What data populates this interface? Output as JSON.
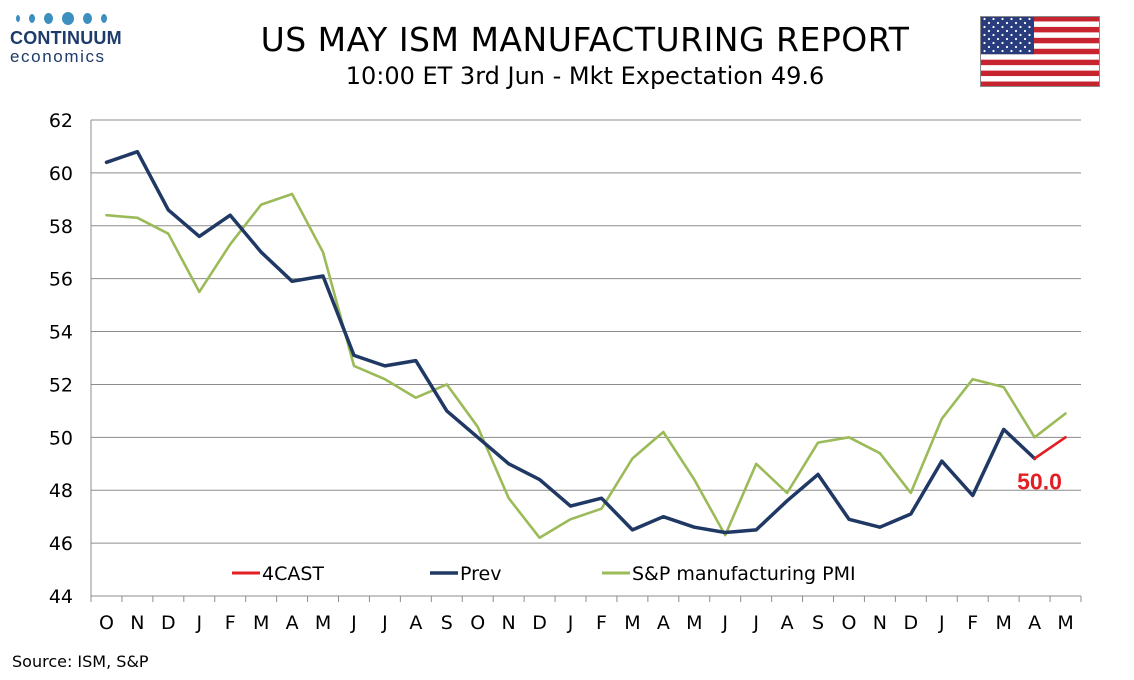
{
  "header": {
    "logo_name": "CONTINUUM",
    "logo_sub": "economics",
    "title": "US MAY ISM MANUFACTURING REPORT",
    "subtitle": "10:00 ET 3rd Jun - Mkt Expectation 49.6",
    "flag_icon": "us-flag-icon",
    "logo_color": "#1d3b6b",
    "logo_dot_color": "#3d8fbf"
  },
  "source": "Source: ISM, S&P",
  "chart_data": {
    "type": "line",
    "title": "US MAY ISM MANUFACTURING REPORT",
    "subtitle": "10:00 ET 3rd Jun - Mkt Expectation 49.6",
    "categories": [
      "O",
      "N",
      "D",
      "J",
      "F",
      "M",
      "A",
      "M",
      "J",
      "J",
      "A",
      "S",
      "O",
      "N",
      "D",
      "J",
      "F",
      "M",
      "A",
      "M",
      "J",
      "J",
      "A",
      "S",
      "O",
      "N",
      "D",
      "J",
      "F",
      "M",
      "A",
      "M"
    ],
    "ylim": [
      44,
      62
    ],
    "yticks": [
      44,
      46,
      48,
      50,
      52,
      54,
      56,
      58,
      60,
      62
    ],
    "grid": true,
    "legend_position": "bottom-inside",
    "series": [
      {
        "name": "4CAST",
        "color": "#e31e24",
        "values": [
          null,
          null,
          null,
          null,
          null,
          null,
          null,
          null,
          null,
          null,
          null,
          null,
          null,
          null,
          null,
          null,
          null,
          null,
          null,
          null,
          null,
          null,
          null,
          null,
          null,
          null,
          null,
          null,
          null,
          null,
          49.2,
          50.0
        ]
      },
      {
        "name": "Prev",
        "color": "#1f3864",
        "values": [
          60.4,
          60.8,
          58.6,
          57.6,
          58.4,
          57.0,
          55.9,
          56.1,
          53.1,
          52.7,
          52.9,
          51.0,
          50.0,
          49.0,
          48.4,
          47.4,
          47.7,
          46.5,
          47.0,
          46.6,
          46.4,
          46.5,
          47.6,
          48.6,
          46.9,
          46.6,
          47.1,
          49.1,
          47.8,
          50.3,
          49.2,
          null
        ]
      },
      {
        "name": "S&P manufacturing PMI",
        "color": "#9bbb59",
        "values": [
          58.4,
          58.3,
          57.7,
          55.5,
          57.3,
          58.8,
          59.2,
          57.0,
          52.7,
          52.2,
          51.5,
          52.0,
          50.4,
          47.7,
          46.2,
          46.9,
          47.3,
          49.2,
          50.2,
          48.4,
          46.3,
          49.0,
          47.9,
          49.8,
          50.0,
          49.4,
          47.9,
          50.7,
          52.2,
          51.9,
          50.0,
          50.9
        ]
      }
    ],
    "annotations": [
      {
        "text": "50.0",
        "color": "#e31e24"
      }
    ]
  }
}
